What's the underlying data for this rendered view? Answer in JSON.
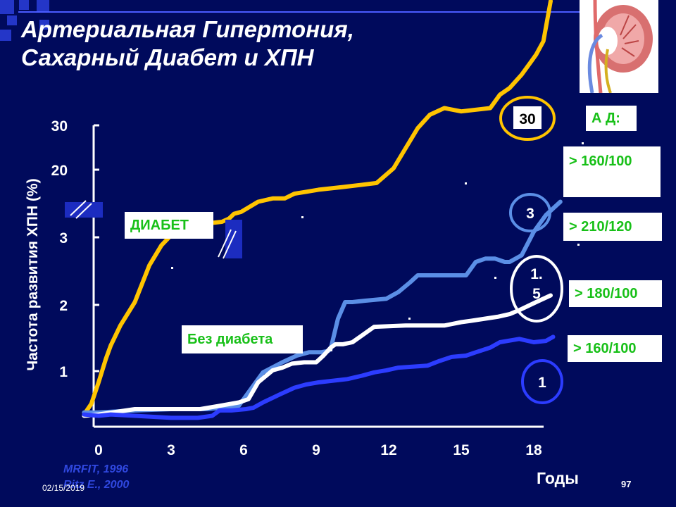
{
  "title": [
    "Артериальная  Гипертония,",
    "Сахарный Диабет и ХПН"
  ],
  "chart_data": {
    "type": "line",
    "ylabel": "Частота развития ХПН (%)",
    "xlabel": "Годы",
    "x_ticks": [
      0,
      3,
      6,
      9,
      12,
      15,
      18
    ],
    "y_ticks": [
      "1",
      "2",
      "3",
      "20",
      "30"
    ],
    "y_axis_broken": true,
    "series": [
      {
        "name": "ДИАБЕТ",
        "color": "#ffc400",
        "x": [
          -0.6,
          -0.3,
          0,
          0.3,
          0.5,
          0.9,
          1.5,
          2.1,
          2.6,
          3,
          3.5,
          4,
          4.6,
          5.1,
          5.4,
          5.6,
          5.9,
          6.6,
          7.2,
          7.7,
          8.1,
          8.6,
          9.1,
          9.6,
          10.1,
          10.8,
          11.5,
          12.2,
          12.7,
          13.2,
          13.7,
          14.3,
          15,
          16.2,
          16.6,
          17,
          17.5,
          17.9,
          18.1,
          18.4,
          18.7
        ],
        "y": [
          0.12,
          0.28,
          0.6,
          0.95,
          1.15,
          1.45,
          1.8,
          2.35,
          2.65,
          2.8,
          2.92,
          2.95,
          2.98,
          3.0,
          3.05,
          3.12,
          3.15,
          3.3,
          3.35,
          3.35,
          3.42,
          3.45,
          3.48,
          3.5,
          3.52,
          3.55,
          3.58,
          3.8,
          4.1,
          4.4,
          4.6,
          4.7,
          4.65,
          4.7,
          4.9,
          5.0,
          5.2,
          5.4,
          5.5,
          5.7,
          6.3
        ]
      },
      {
        "name": "> 210/120",
        "color": "#5b8fe6",
        "x": [
          -0.6,
          0,
          1.5,
          3,
          4.5,
          5.8,
          6.3,
          6.8,
          7.6,
          8.2,
          8.7,
          9,
          9.2,
          9.5,
          9.6,
          9.9,
          10.2,
          10.5,
          11,
          11.9,
          12.4,
          12.9,
          13.2,
          14.4,
          15.2,
          15.6,
          16,
          16.4,
          16.8,
          17,
          17.5,
          18,
          18.5,
          18.8,
          19.1
        ],
        "y": [
          0.15,
          0.15,
          0.18,
          0.2,
          0.2,
          0.25,
          0.5,
          0.75,
          0.9,
          1.0,
          1.05,
          1.05,
          1.05,
          1.07,
          1.1,
          1.55,
          1.8,
          1.8,
          1.82,
          1.85,
          1.95,
          2.1,
          2.2,
          2.2,
          2.2,
          2.4,
          2.45,
          2.45,
          2.4,
          2.4,
          2.5,
          2.85,
          3.1,
          3.2,
          3.3
        ]
      },
      {
        "name": "> 180/100",
        "color": "#ffffff",
        "x": [
          -0.6,
          0,
          1.5,
          3,
          4.2,
          5,
          5.8,
          6.2,
          6.6,
          7.2,
          7.6,
          8,
          8.5,
          9,
          9.3,
          9.6,
          9.8,
          10.1,
          10.5,
          11.4,
          12.7,
          14.3,
          15,
          15.4,
          16.5,
          17,
          17.4,
          18.1,
          18.7
        ],
        "y": [
          0.1,
          0.12,
          0.2,
          0.2,
          0.2,
          0.25,
          0.3,
          0.35,
          0.6,
          0.78,
          0.82,
          0.88,
          0.9,
          0.9,
          1.0,
          1.12,
          1.17,
          1.17,
          1.2,
          1.43,
          1.45,
          1.45,
          1.5,
          1.52,
          1.58,
          1.62,
          1.68,
          1.8,
          1.9
        ]
      },
      {
        "name": "> 160/100",
        "color": "#2c3cff",
        "x": [
          -0.6,
          0,
          0.5,
          1.5,
          3,
          4.1,
          4.7,
          5,
          5.5,
          6.1,
          6.4,
          6.8,
          7.5,
          8.1,
          8.6,
          9.1,
          10.3,
          10.9,
          11.4,
          11.9,
          12.4,
          13.6,
          14.1,
          14.6,
          15.2,
          15.6,
          16.2,
          16.6,
          17.4,
          18,
          18.5,
          18.8
        ],
        "y": [
          0.12,
          0.1,
          0.12,
          0.1,
          0.07,
          0.07,
          0.1,
          0.18,
          0.18,
          0.2,
          0.22,
          0.3,
          0.42,
          0.52,
          0.57,
          0.6,
          0.65,
          0.7,
          0.75,
          0.78,
          0.82,
          0.85,
          0.92,
          0.98,
          1.0,
          1.05,
          1.12,
          1.2,
          1.25,
          1.2,
          1.22,
          1.28
        ]
      }
    ],
    "end_labels": [
      "30",
      "3",
      "1.\n5",
      "1"
    ],
    "legend_title": "А Д:",
    "bp_labels": [
      "> 160/100",
      "> 210/120",
      "> 180/100",
      "> 160/100"
    ],
    "group_labels": [
      "ДИАБЕТ",
      "Без диабета"
    ]
  },
  "source": [
    "MRFIT, 1996",
    "Ritz E., 2000"
  ],
  "date": "02/15/2019",
  "page_number": "97"
}
